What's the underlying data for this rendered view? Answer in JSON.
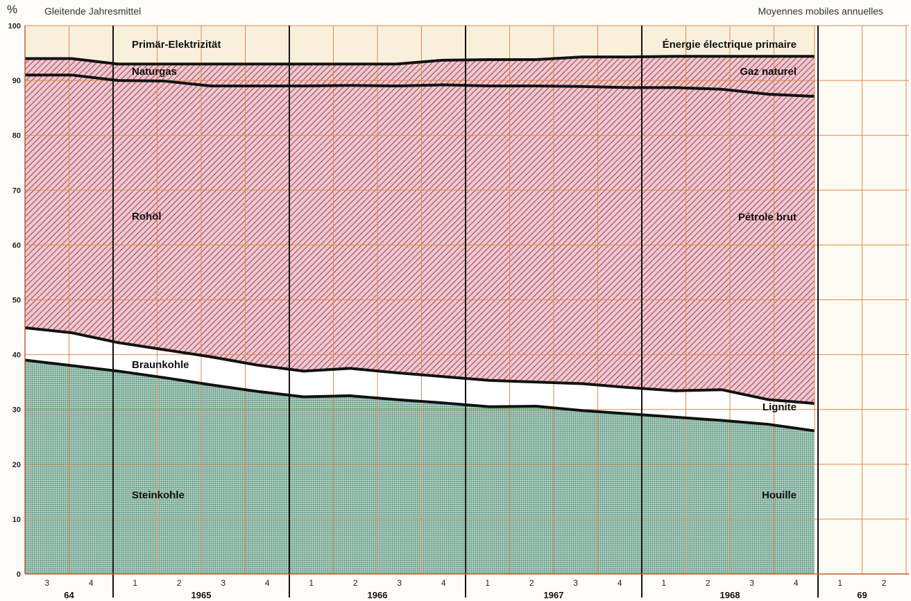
{
  "header": {
    "left": "Gleitende Jahresmittel",
    "right": "Moyennes mobiles annuelles",
    "unit": "%"
  },
  "chart_data": {
    "type": "area",
    "stacked": true,
    "ylim": [
      0,
      100
    ],
    "yticks": [
      0,
      10,
      20,
      30,
      40,
      50,
      60,
      70,
      80,
      90,
      100
    ],
    "x_quarters": [
      "1964 Q3",
      "1964 Q4",
      "1965 Q1",
      "1965 Q2",
      "1965 Q3",
      "1965 Q4",
      "1966 Q1",
      "1966 Q2",
      "1966 Q3",
      "1966 Q4",
      "1967 Q1",
      "1967 Q2",
      "1967 Q3",
      "1967 Q4",
      "1968 Q1",
      "1968 Q2",
      "1968 Q3",
      "1968 Q4"
    ],
    "quarter_labels": [
      "3",
      "4",
      "1",
      "2",
      "3",
      "4",
      "1",
      "2",
      "3",
      "4",
      "1",
      "2",
      "3",
      "4",
      "1",
      "2",
      "3",
      "4",
      "1",
      "2"
    ],
    "year_labels": [
      "64",
      "1965",
      "1966",
      "1967",
      "1968",
      "69"
    ],
    "boundaries": {
      "steinkohle_top": [
        39.0,
        38.0,
        37.0,
        35.8,
        34.5,
        33.3,
        32.3,
        32.5,
        31.8,
        31.2,
        30.5,
        30.6,
        29.8,
        29.2,
        28.6,
        28.0,
        27.3,
        26.1
      ],
      "braunkohle_top": [
        44.9,
        44.0,
        42.2,
        40.9,
        39.6,
        38.1,
        37.0,
        37.5,
        36.7,
        36.0,
        35.3,
        35.0,
        34.7,
        34.0,
        33.4,
        33.6,
        31.8,
        31.1
      ],
      "rohoel_top": [
        91.0,
        91.0,
        90.0,
        89.9,
        89.0,
        89.0,
        89.0,
        89.1,
        89.0,
        89.2,
        89.0,
        89.0,
        88.9,
        88.7,
        88.7,
        88.4,
        87.5,
        87.1
      ],
      "naturgas_top": [
        94.0,
        94.0,
        93.0,
        93.0,
        93.0,
        93.0,
        93.0,
        93.0,
        93.0,
        93.7,
        93.8,
        93.8,
        94.3,
        94.3,
        94.4,
        94.4,
        94.4,
        94.4
      ],
      "elektrizitaet_top": [
        100,
        100,
        100,
        100,
        100,
        100,
        100,
        100,
        100,
        100,
        100,
        100,
        100,
        100,
        100,
        100,
        100,
        100
      ]
    },
    "series": [
      {
        "name_de": "Steinkohle",
        "name_fr": "Houille",
        "color": "#5f9e8c"
      },
      {
        "name_de": "Braunkohle",
        "name_fr": "Lignite",
        "color": "#ffffff"
      },
      {
        "name_de": "Rohöl",
        "name_fr": "Pétrole brut",
        "color": "#b84a5e"
      },
      {
        "name_de": "Naturgas",
        "name_fr": "Gaz naturel",
        "color": "#b84a5e"
      },
      {
        "name_de": "Primär-Elektrizität",
        "name_fr": "Énergie électrique primaire",
        "color": "#fbf3e4"
      }
    ],
    "grid": true,
    "grid_color": "#e08a4c"
  }
}
